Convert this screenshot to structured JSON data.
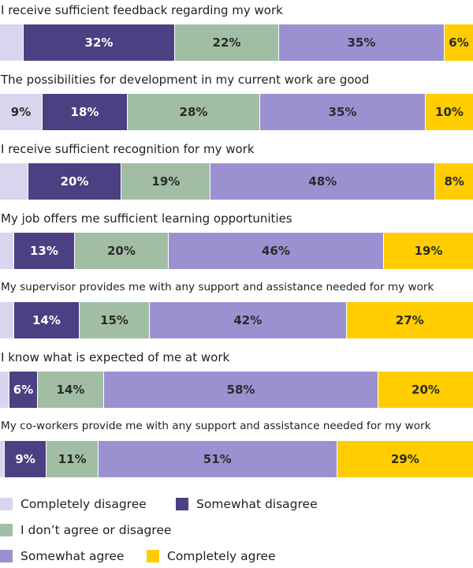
{
  "chart_data": {
    "type": "bar",
    "orientation": "horizontal-stacked-100",
    "categories": [
      "I receive sufficient feedback regarding my work",
      "The possibilities for development in my current work are good",
      "I receive sufficient recognition for my work",
      "My job offers me sufficient learning opportunities",
      "My supervisor provides me with any support and assistance needed for my work",
      "I know what is expected of me at work",
      "My co-workers provide me with any support and assistance needed for my work"
    ],
    "series": [
      {
        "name": "Completely disagree",
        "color": "#d8d6ee",
        "label_color": "#2b2b2b",
        "values": [
          5,
          9,
          6,
          3,
          3,
          2,
          1
        ]
      },
      {
        "name": "Somewhat disagree",
        "color": "#4a4082",
        "label_color": "#ffffff",
        "values": [
          32,
          18,
          20,
          13,
          14,
          6,
          9
        ]
      },
      {
        "name": "I don’t agree or disagree",
        "color": "#a1bea5",
        "label_color": "#2b2b2b",
        "values": [
          22,
          28,
          19,
          20,
          15,
          14,
          11
        ]
      },
      {
        "name": "Somewhat agree",
        "color": "#9b91d1",
        "label_color": "#2b2b2b",
        "values": [
          35,
          35,
          48,
          46,
          42,
          58,
          51
        ]
      },
      {
        "name": "Completely agree",
        "color": "#ffcd00",
        "label_color": "#2b2b2b",
        "values": [
          6,
          10,
          8,
          19,
          27,
          20,
          29
        ]
      }
    ],
    "data_labels": [
      [
        "",
        "32%",
        "22%",
        "35%",
        "6%"
      ],
      [
        "9%",
        "18%",
        "28%",
        "35%",
        "10%"
      ],
      [
        "",
        "20%",
        "19%",
        "48%",
        "8%"
      ],
      [
        "",
        "13%",
        "20%",
        "46%",
        "19%"
      ],
      [
        "",
        "14%",
        "15%",
        "42%",
        "27%"
      ],
      [
        "",
        "6%",
        "14%",
        "58%",
        "20%"
      ],
      [
        "",
        "9%",
        "11%",
        "51%",
        "29%"
      ]
    ],
    "legend_position": "bottom",
    "grid": false
  }
}
